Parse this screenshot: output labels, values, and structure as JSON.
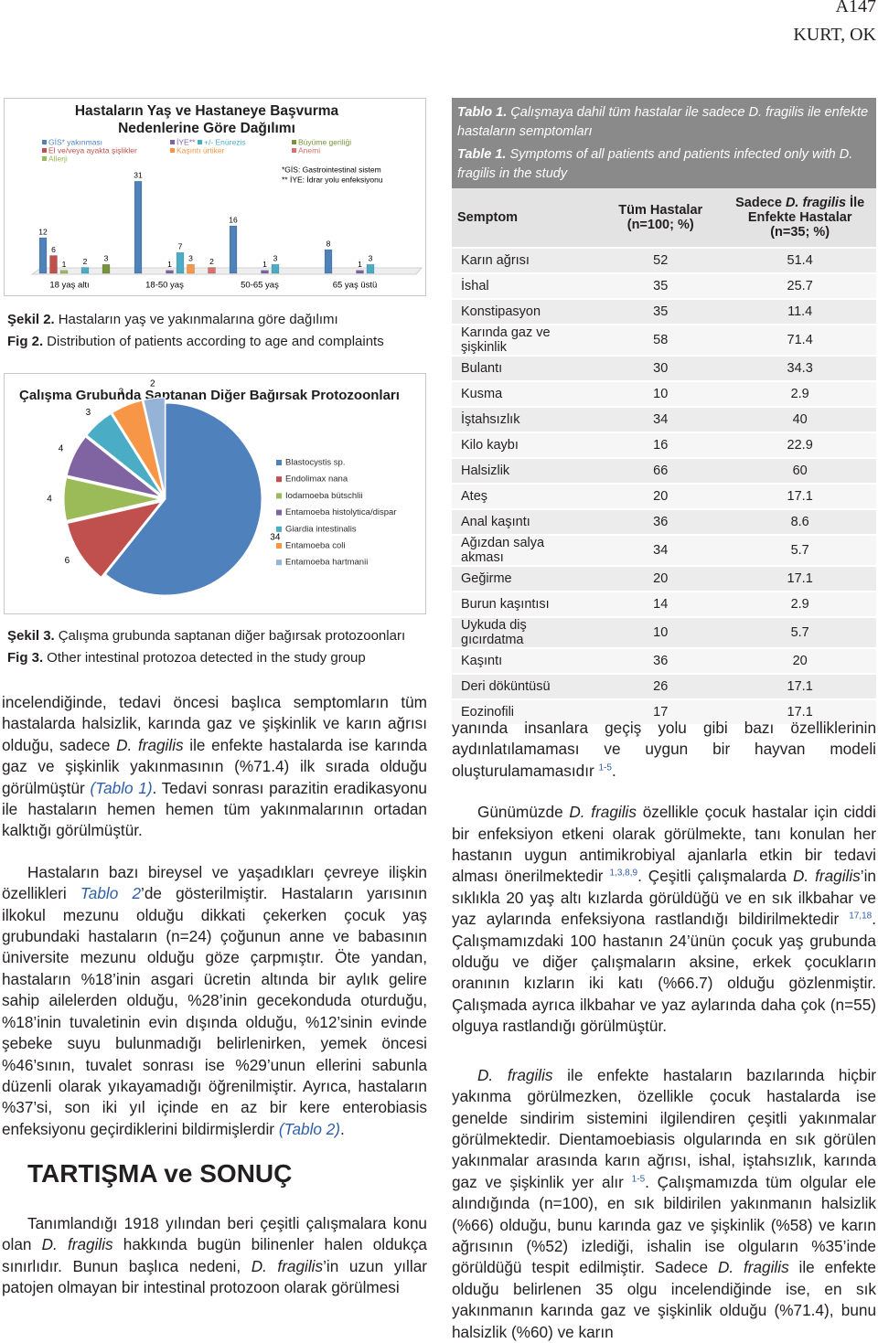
{
  "header": {
    "page": "A147",
    "authors": "KURT, OK"
  },
  "chart_data": [
    {
      "type": "bar",
      "title": "Hastaların Yaş ve Hastaneye Başvurma Nedenlerine Göre Dağılımı",
      "categories": [
        "18 yaş altı",
        "18-50 yaş",
        "50-65 yaş",
        "65 yaş üstü"
      ],
      "series": [
        {
          "name": "GİS* yakınması",
          "color": "#4f81bd",
          "values": [
            12,
            31,
            16,
            8
          ]
        },
        {
          "name": "El ve/veya ayakta şişlikler",
          "color": "#c0504d",
          "values": [
            6,
            null,
            null,
            null
          ]
        },
        {
          "name": "Allerji",
          "color": "#9bbb59",
          "values": [
            1,
            null,
            null,
            null
          ]
        },
        {
          "name": "İYE**",
          "color": "#8064a2",
          "values": [
            null,
            1,
            1,
            1
          ]
        },
        {
          "name": "+/- Enürezis",
          "color": "#4bacc6",
          "values": [
            2,
            7,
            3,
            3
          ]
        },
        {
          "name": "Kaşıntı ürtiker",
          "color": "#f79646",
          "values": [
            null,
            3,
            null,
            null
          ]
        },
        {
          "name": "Büyüme geriliği",
          "color": "#77933c",
          "values": [
            3,
            null,
            null,
            null
          ]
        },
        {
          "name": "Anemi",
          "color": "#d9706c",
          "values": [
            null,
            2,
            null,
            null
          ]
        }
      ],
      "notes": [
        "*GİS: Gastrointestinal sistem",
        "** İYE: İdrar yolu enfeksiyonu"
      ],
      "ylim": [
        0,
        32
      ],
      "grid": false
    },
    {
      "type": "pie",
      "title": "Çalışma Grubunda Saptanan Diğer Bağırsak Protozoonları",
      "categories": [
        "Blastocystis sp.",
        "Endolimax nana",
        "Iodamoeba bütschlii",
        "Entamoeba histolytica/dispar",
        "Giardia intestinalis",
        "Entamoeba coli",
        "Entamoeba hartmanii"
      ],
      "values": [
        34,
        6,
        4,
        4,
        3,
        3,
        2
      ],
      "colors": [
        "#4f81bd",
        "#c0504d",
        "#9bbb59",
        "#8064a2",
        "#4bacc6",
        "#f79646",
        "#95b3d7"
      ]
    }
  ],
  "figure_captions": [
    {
      "label": "Şekil 2.",
      "text": "Hastaların yaş ve yakınmalarına göre dağılımı",
      "label_en": "Fig 2.",
      "text_en": "Distribution of patients according to age and complaints"
    },
    {
      "label": "Şekil 3.",
      "text": "Çalışma grubunda saptanan diğer bağırsak protozoonları",
      "label_en": "Fig 3.",
      "text_en": "Other intestinal protozoa detected in the study group"
    }
  ],
  "table": {
    "caption": [
      {
        "b": "Tablo 1."
      },
      " Çalışmaya dahil tüm hastalar ile sadece ",
      {
        "i": "D. fragilis"
      },
      " ile enfekte hastaların semptomları"
    ],
    "caption_en": [
      {
        "b": "Table 1."
      },
      " Symptoms of all patients and patients infected only with ",
      {
        "i": "D. fragilis"
      },
      " in the study"
    ],
    "headers": [
      [
        "Semptom"
      ],
      [
        "Tüm Hastalar (n=100; %)"
      ],
      [
        "Sadece ",
        {
          "i": "D. fragilis"
        },
        " İle Enfekte Hastalar (n=35; %)"
      ]
    ],
    "rows": [
      [
        "Karın ağrısı",
        52,
        51.4
      ],
      [
        "İshal",
        35,
        25.7
      ],
      [
        "Konstipasyon",
        35,
        11.4
      ],
      [
        "Karında gaz ve şişkinlik",
        58,
        71.4
      ],
      [
        "Bulantı",
        30,
        34.3
      ],
      [
        "Kusma",
        10,
        2.9
      ],
      [
        "İştahsızlık",
        34,
        40
      ],
      [
        "Kilo kaybı",
        16,
        22.9
      ],
      [
        "Halsizlik",
        66,
        60
      ],
      [
        "Ateş",
        20,
        17.1
      ],
      [
        "Anal kaşıntı",
        36,
        8.6
      ],
      [
        "Ağızdan salya akması",
        34,
        5.7
      ],
      [
        "Geğirme",
        20,
        17.1
      ],
      [
        "Burun kaşıntısı",
        14,
        2.9
      ],
      [
        "Uykuda diş gıcırdatma",
        10,
        5.7
      ],
      [
        "Kaşıntı",
        36,
        20
      ],
      [
        "Deri döküntüsü",
        26,
        17.1
      ],
      [
        "Eozinofili",
        17,
        17.1
      ]
    ]
  },
  "left_column": {
    "paragraphs": [
      [
        "incelendiğinde, tedavi öncesi başlıca semptomların tüm hastalarda halsizlik, karında gaz ve şişkinlik ve karın ağrısı olduğu, sadece ",
        {
          "i": "D. fragilis"
        },
        " ile enfekte hastalarda ise karında gaz ve şişkinlik yakınmasının (%71.4) ilk sırada olduğu görülmüştür ",
        {
          "link": "(Tablo 1)"
        },
        ". Tedavi sonrası parazitin eradikasyonu ile hastaların hemen hemen tüm yakınmalarının ortadan kalktığı görülmüştür."
      ],
      [
        "Hastaların bazı bireysel ve yaşadıkları çevreye ilişkin özellikleri ",
        {
          "link": "Tablo 2"
        },
        "’de gösterilmiştir. Hastaların yarısının ilkokul mezunu olduğu dikkati çekerken çocuk yaş grubundaki hastaların (n=24) çoğunun anne ve babasının üniversite mezunu olduğu göze çarpmıştır. Öte yandan, hastaların %18’inin asgari ücretin altında bir aylık gelire sahip ailelerden olduğu, %28’inin gecekonduda oturduğu, %18’inin tuvaletinin evin dışında olduğu, %12’sinin evinde şebeke suyu bulunmadığı belirlenirken, yemek öncesi %46’sının, tuvalet sonrası ise %29’unun ellerini sabunla düzenli olarak yıkayamadığı öğrenilmiştir. Ayrıca, hastaların %37’si, son iki yıl içinde en az bir kere enterobiasis enfeksiyonu geçirdiklerini bildirmişlerdir ",
        {
          "link": "(Tablo 2)"
        },
        "."
      ]
    ],
    "heading": "TARTIŞMA ve SONUÇ",
    "paragraphs_after": [
      [
        "Tanımlandığı 1918 yılından beri çeşitli çalışmalara konu olan ",
        {
          "i": "D. fragilis"
        },
        " hakkında bugün bilinenler halen oldukça sınırlıdır. Bunun başlıca nedeni, ",
        {
          "i": "D. fragilis"
        },
        "’in uzun yıllar patojen olmayan bir intestinal protozoon olarak görülmesi"
      ]
    ]
  },
  "right_column": {
    "paragraphs": [
      [
        "yanında insanlara geçiş yolu gibi bazı özelliklerinin aydınlatılamaması ve uygun bir hayvan modeli oluşturulamamasıdır ",
        {
          "sup": "1-5"
        },
        "."
      ],
      [
        "Günümüzde ",
        {
          "i": "D. fragilis"
        },
        " özellikle çocuk hastalar için ciddi bir enfeksiyon etkeni olarak görülmekte, tanı konulan her hastanın uygun antimikrobiyal ajanlarla etkin bir tedavi alması önerilmektedir ",
        {
          "sup": "1,3,8,9"
        },
        ". Çeşitli çalışmalarda ",
        {
          "i": "D. fragilis"
        },
        "’in sıklıkla 20 yaş altı kızlarda görüldüğü ve en sık ilkbahar ve yaz aylarında enfeksiyona rastlandığı bildirilmektedir ",
        {
          "sup": "17,18"
        },
        ". Çalışmamızdaki 100 hastanın 24’ünün çocuk yaş grubunda olduğu ve diğer çalışmaların aksine, erkek çocukların oranının kızların iki katı (%66.7) olduğu gözlenmiştir. Çalışmada ayrıca ilkbahar ve yaz aylarında daha çok (n=55) olguya rastlandığı görülmüştür."
      ],
      [
        {
          "i": "D. fragilis"
        },
        " ile enfekte hastaların bazılarında hiçbir yakınma görülmezken, özellikle çocuk hastalarda ise genelde sindirim sistemini ilgilendiren çeşitli yakınmalar görülmektedir. Dientamoebiasis olgularında en sık görülen yakınmalar arasında karın ağrısı, ishal, iştahsızlık, karında gaz ve şişkinlik yer alır ",
        {
          "sup": "1-5"
        },
        ". Çalışmamızda tüm olgular ele alındığında (n=100), en sık bildirilen yakınmanın halsizlik (%66) olduğu, bunu karında gaz ve şişkinlik (%58) ve karın ağrısının (%52) izlediği, ishalin ise olguların %35’inde görüldüğü tespit edilmiştir. Sadece ",
        {
          "i": "D. fragilis"
        },
        " ile enfekte olduğu belirlenen 35 olgu incelendiğinde ise, en sık yakınmanın karında gaz ve şişkinlik olduğu (%71.4), bunu halsizlik (%60) ve karın"
      ]
    ]
  }
}
